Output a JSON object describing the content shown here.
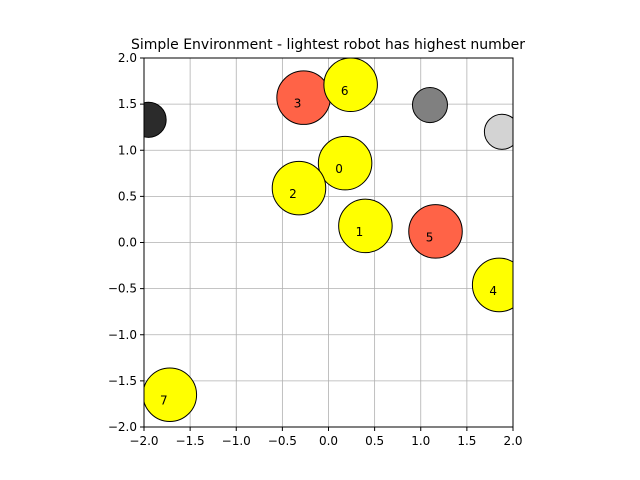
{
  "chart_data": {
    "type": "scatter",
    "title": "Simple Environment - lightest robot has highest number",
    "xlabel": "",
    "ylabel": "",
    "xlim": [
      -2.0,
      2.0
    ],
    "ylim": [
      -2.0,
      2.0
    ],
    "grid": true,
    "x_ticks": [
      -2.0,
      -1.5,
      -1.0,
      -0.5,
      0.0,
      0.5,
      1.0,
      1.5,
      2.0
    ],
    "y_ticks": [
      -2.0,
      -1.5,
      -1.0,
      -0.5,
      0.0,
      0.5,
      1.0,
      1.5,
      2.0
    ],
    "x_tick_labels": [
      "−2.0",
      "−1.5",
      "−1.0",
      "−0.5",
      "0.0",
      "0.5",
      "1.0",
      "1.5",
      "2.0"
    ],
    "y_tick_labels": [
      "−2.0",
      "−1.5",
      "−1.0",
      "−0.5",
      "0.0",
      "0.5",
      "1.0",
      "1.5",
      "2.0"
    ],
    "robots": [
      {
        "label": "0",
        "x": 0.18,
        "y": 0.86,
        "r": 0.29,
        "color": "#ffff00"
      },
      {
        "label": "1",
        "x": 0.4,
        "y": 0.18,
        "r": 0.29,
        "color": "#ffff00"
      },
      {
        "label": "2",
        "x": -0.32,
        "y": 0.59,
        "r": 0.29,
        "color": "#ffff00"
      },
      {
        "label": "3",
        "x": -0.27,
        "y": 1.57,
        "r": 0.29,
        "color": "#ff6347"
      },
      {
        "label": "4",
        "x": 1.85,
        "y": -0.46,
        "r": 0.29,
        "color": "#ffff00"
      },
      {
        "label": "5",
        "x": 1.16,
        "y": 0.12,
        "r": 0.29,
        "color": "#ff6347"
      },
      {
        "label": "6",
        "x": 0.24,
        "y": 1.71,
        "r": 0.29,
        "color": "#ffff00"
      },
      {
        "label": "7",
        "x": -1.72,
        "y": -1.65,
        "r": 0.29,
        "color": "#ffff00"
      }
    ],
    "obstacles": [
      {
        "x": -1.95,
        "y": 1.33,
        "r": 0.19,
        "color": "#2b2b2b"
      },
      {
        "x": 1.1,
        "y": 1.49,
        "r": 0.19,
        "color": "#808080"
      },
      {
        "x": 1.88,
        "y": 1.2,
        "r": 0.19,
        "color": "#d3d3d3"
      }
    ]
  }
}
